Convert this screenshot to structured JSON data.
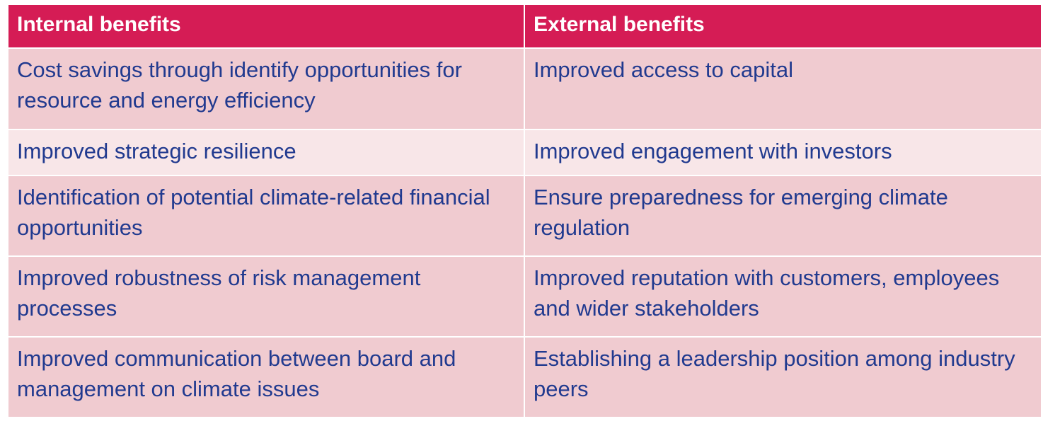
{
  "table": {
    "headers": [
      "Internal benefits",
      "External benefits"
    ],
    "rows": [
      [
        "Cost savings through identify opportunities for resource and energy efficiency",
        "Improved access to capital"
      ],
      [
        "Improved strategic resilience",
        "Improved engagement with investors"
      ],
      [
        "Identification of potential climate-related financial opportunities",
        "Ensure preparedness for emerging climate regulation"
      ],
      [
        "Improved robustness of risk management processes",
        "Improved reputation with customers, employees and wider stakeholders"
      ],
      [
        "Improved communication between board and management on climate issues",
        "Establishing a leadership position among industry peers"
      ]
    ]
  },
  "colors": {
    "header_bg": "#d51c55",
    "header_text": "#ffffff",
    "row_odd_bg": "#f0cbd0",
    "row_even_bg": "#f8e6e8",
    "body_text": "#213a8f"
  }
}
